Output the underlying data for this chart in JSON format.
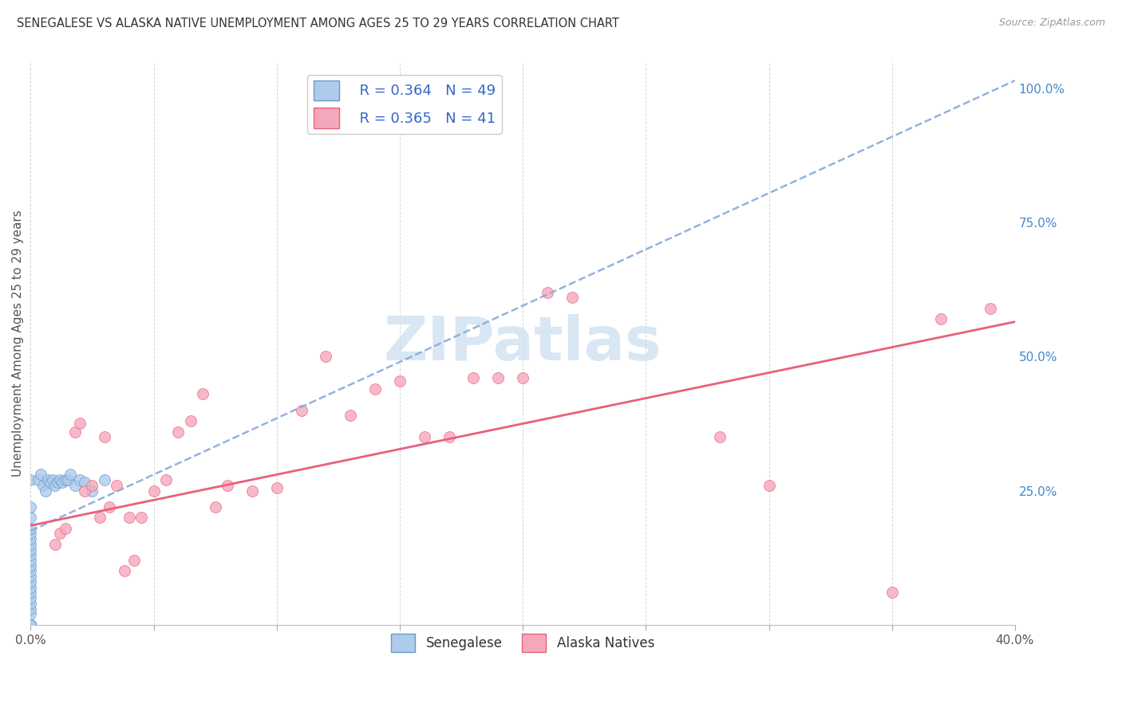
{
  "title": "SENEGALESE VS ALASKA NATIVE UNEMPLOYMENT AMONG AGES 25 TO 29 YEARS CORRELATION CHART",
  "source": "Source: ZipAtlas.com",
  "ylabel": "Unemployment Among Ages 25 to 29 years",
  "xlim": [
    0.0,
    0.4
  ],
  "ylim": [
    0.0,
    1.05
  ],
  "xticks": [
    0.0,
    0.05,
    0.1,
    0.15,
    0.2,
    0.25,
    0.3,
    0.35,
    0.4
  ],
  "xticklabels": [
    "0.0%",
    "",
    "",
    "",
    "",
    "",
    "",
    "",
    "40.0%"
  ],
  "yticks_right": [
    0.0,
    0.25,
    0.5,
    0.75,
    1.0
  ],
  "yticklabels_right": [
    "",
    "25.0%",
    "50.0%",
    "75.0%",
    "100.0%"
  ],
  "legend_r1": "R = 0.364",
  "legend_n1": "N = 49",
  "legend_r2": "R = 0.365",
  "legend_n2": "N = 41",
  "color_senegalese_fill": "#aecbec",
  "color_senegalese_edge": "#6699cc",
  "color_alaska_fill": "#f5a8bc",
  "color_alaska_edge": "#e8607a",
  "color_line_senegalese": "#88aadd",
  "color_line_alaska": "#e8607a",
  "watermark_color": "#cce0f0",
  "sen_line_intercept": 0.175,
  "sen_line_slope": 2.1,
  "ala_line_intercept": 0.185,
  "ala_line_slope": 0.95,
  "senegalese_x": [
    0.0,
    0.0,
    0.0,
    0.0,
    0.0,
    0.0,
    0.0,
    0.0,
    0.0,
    0.0,
    0.0,
    0.0,
    0.0,
    0.0,
    0.0,
    0.0,
    0.0,
    0.0,
    0.0,
    0.0,
    0.0,
    0.0,
    0.0,
    0.0,
    0.0,
    0.0,
    0.0,
    0.0,
    0.0,
    0.0,
    0.003,
    0.004,
    0.005,
    0.006,
    0.007,
    0.008,
    0.009,
    0.01,
    0.011,
    0.012,
    0.013,
    0.014,
    0.015,
    0.016,
    0.018,
    0.02,
    0.022,
    0.025,
    0.03
  ],
  "senegalese_y": [
    0.0,
    0.0,
    0.0,
    0.0,
    0.0,
    0.0,
    0.0,
    0.0,
    0.0,
    0.0,
    0.02,
    0.03,
    0.04,
    0.05,
    0.06,
    0.07,
    0.08,
    0.09,
    0.1,
    0.11,
    0.12,
    0.13,
    0.14,
    0.15,
    0.16,
    0.17,
    0.18,
    0.2,
    0.22,
    0.27,
    0.27,
    0.28,
    0.26,
    0.25,
    0.27,
    0.265,
    0.27,
    0.26,
    0.265,
    0.27,
    0.265,
    0.27,
    0.27,
    0.28,
    0.26,
    0.27,
    0.265,
    0.25,
    0.27
  ],
  "alaska_x": [
    0.01,
    0.012,
    0.014,
    0.018,
    0.02,
    0.022,
    0.025,
    0.028,
    0.03,
    0.032,
    0.035,
    0.038,
    0.04,
    0.042,
    0.045,
    0.05,
    0.055,
    0.06,
    0.065,
    0.07,
    0.075,
    0.08,
    0.09,
    0.1,
    0.11,
    0.12,
    0.13,
    0.14,
    0.15,
    0.16,
    0.17,
    0.18,
    0.19,
    0.2,
    0.21,
    0.22,
    0.28,
    0.3,
    0.35,
    0.37,
    0.39
  ],
  "alaska_y": [
    0.15,
    0.17,
    0.18,
    0.36,
    0.375,
    0.25,
    0.26,
    0.2,
    0.35,
    0.22,
    0.26,
    0.1,
    0.2,
    0.12,
    0.2,
    0.25,
    0.27,
    0.36,
    0.38,
    0.43,
    0.22,
    0.26,
    0.25,
    0.255,
    0.4,
    0.5,
    0.39,
    0.44,
    0.455,
    0.35,
    0.35,
    0.46,
    0.46,
    0.46,
    0.62,
    0.61,
    0.35,
    0.26,
    0.06,
    0.57,
    0.59
  ]
}
